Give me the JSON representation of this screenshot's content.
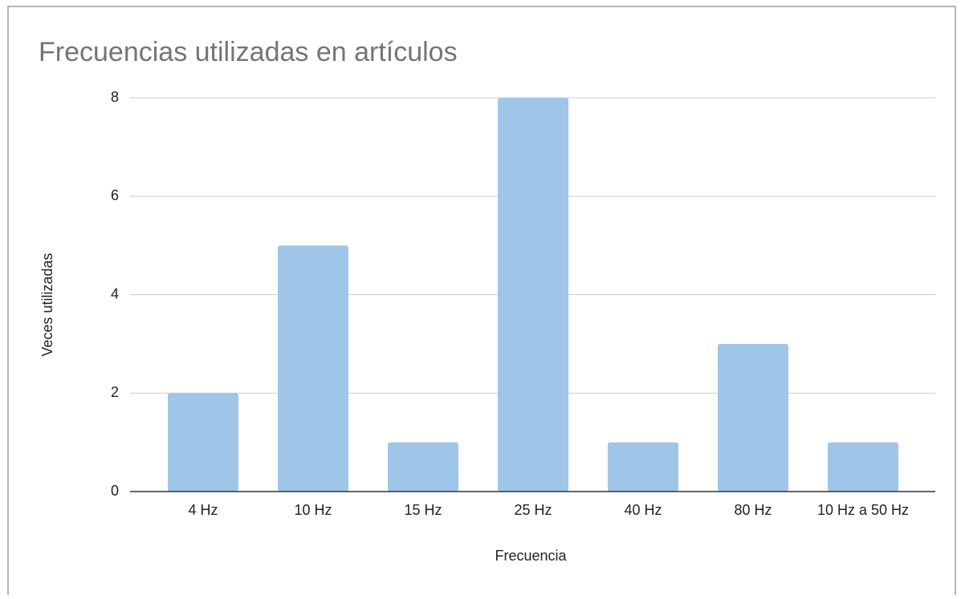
{
  "chart_data": {
    "type": "bar",
    "title": "Frecuencias utilizadas en artículos",
    "x_label": "Frecuencia",
    "y_label": "Veces utilizadas",
    "categories": [
      "4 Hz",
      "10 Hz",
      "15 Hz",
      "25 Hz",
      "40 Hz",
      "80 Hz",
      "10 Hz a 50 Hz"
    ],
    "values": [
      2,
      5,
      1,
      8,
      1,
      3,
      1
    ],
    "color": "#9fc5e8",
    "ylim": [
      0,
      8
    ],
    "yticks": [
      0,
      2,
      4,
      6,
      8
    ],
    "grid": true
  }
}
